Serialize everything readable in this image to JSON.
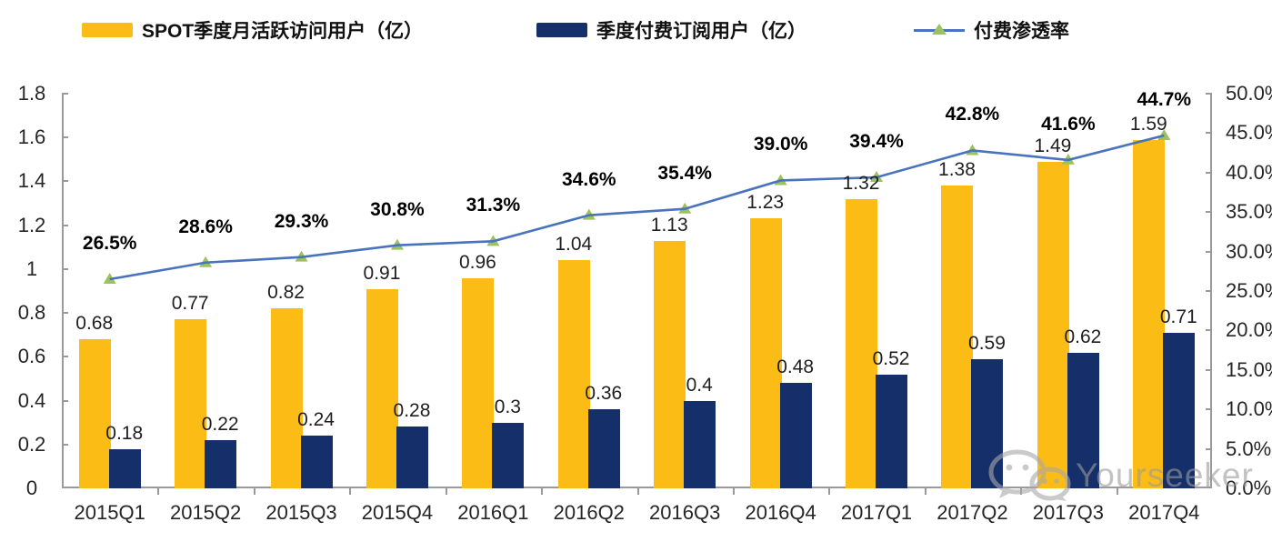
{
  "legend": {
    "items": [
      {
        "label": "SPOT季度月活跃访问用户（亿）",
        "swatch_color": "#FBBC16",
        "type": "bar-swatch"
      },
      {
        "label": "季度付费订阅用户（亿）",
        "swatch_color": "#152F6B",
        "type": "bar-swatch"
      },
      {
        "label": "付费渗透率",
        "line_color": "#4A73BE",
        "marker_color": "#9CC25E",
        "type": "line-marker"
      }
    ]
  },
  "chart_data": {
    "type": "bar+line",
    "title": "",
    "categories": [
      "2015Q1",
      "2015Q2",
      "2015Q3",
      "2015Q4",
      "2016Q1",
      "2016Q2",
      "2016Q3",
      "2016Q4",
      "2017Q1",
      "2017Q2",
      "2017Q3",
      "2017Q4"
    ],
    "series": [
      {
        "name": "SPOT季度月活跃访问用户（亿）",
        "type": "bar",
        "axis": "left",
        "color": "#FBBC16",
        "values": [
          0.68,
          0.77,
          0.82,
          0.91,
          0.96,
          1.04,
          1.13,
          1.23,
          1.32,
          1.38,
          1.49,
          1.59
        ],
        "labels": [
          "0.68",
          "0.77",
          "0.82",
          "0.91",
          "0.96",
          "1.04",
          "1.13",
          "1.23",
          "1.32",
          "1.38",
          "1.49",
          "1.59"
        ]
      },
      {
        "name": "季度付费订阅用户（亿）",
        "type": "bar",
        "axis": "left",
        "color": "#152F6B",
        "values": [
          0.18,
          0.22,
          0.24,
          0.28,
          0.3,
          0.36,
          0.4,
          0.48,
          0.52,
          0.59,
          0.62,
          0.71
        ],
        "labels": [
          "0.18",
          "0.22",
          "0.24",
          "0.28",
          "0.3",
          "0.36",
          "0.4",
          "0.48",
          "0.52",
          "0.59",
          "0.62",
          "0.71"
        ]
      },
      {
        "name": "付费渗透率",
        "type": "line",
        "axis": "right",
        "color": "#4A73BE",
        "marker": "triangle",
        "marker_color": "#9CC25E",
        "values": [
          26.5,
          28.6,
          29.3,
          30.8,
          31.3,
          34.6,
          35.4,
          39.0,
          39.4,
          42.8,
          41.6,
          44.7
        ],
        "labels": [
          "26.5%",
          "28.6%",
          "29.3%",
          "30.8%",
          "31.3%",
          "34.6%",
          "35.4%",
          "39.0%",
          "39.4%",
          "42.8%",
          "41.6%",
          "44.7%"
        ]
      }
    ],
    "left_axis": {
      "min": 0,
      "max": 1.8,
      "tick_labels": [
        "1.8",
        "1.6",
        "1.4",
        "1.2",
        "1",
        "0.8",
        "0.6",
        "0.4",
        "0.2",
        "0"
      ]
    },
    "right_axis": {
      "min": 0,
      "max": 50,
      "unit": "%",
      "tick_labels": [
        "50.0%",
        "45.0%",
        "40.0%",
        "35.0%",
        "30.0%",
        "25.0%",
        "20.0%",
        "15.0%",
        "10.0%",
        "5.0%",
        "0.0%"
      ]
    },
    "grid": "off",
    "legend_position": "top"
  },
  "colors": {
    "bar_mau": "#FBBC16",
    "bar_subs": "#152F6B",
    "line": "#4A73BE",
    "marker": "#9CC25E",
    "axis": "#9a9a9a",
    "data_label": "#1f1f1f"
  },
  "watermark": {
    "text": "Yourseeker",
    "icon": "wechat-logo"
  }
}
